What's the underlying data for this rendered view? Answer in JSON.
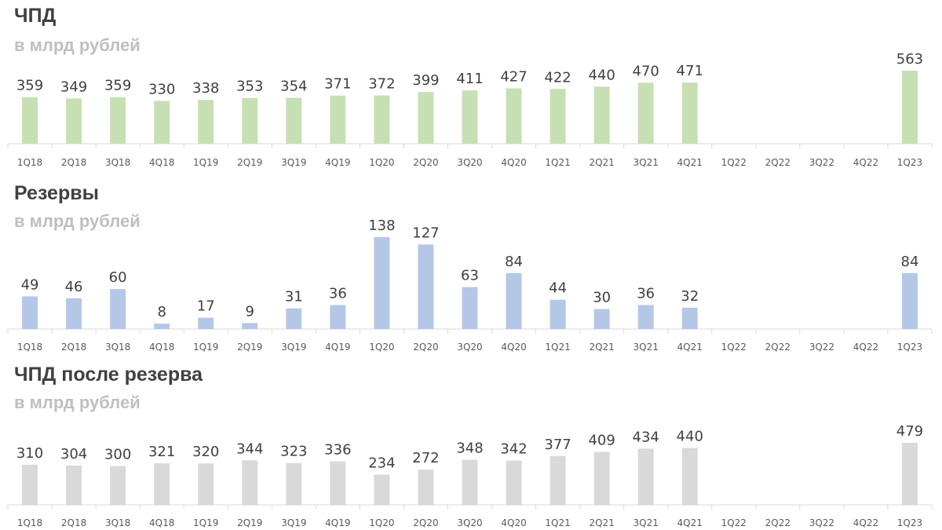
{
  "chart_data": [
    {
      "type": "bar",
      "title": "ЧПД",
      "subtitle": "в млрд рублей",
      "color": "#c6e0b4",
      "categories": [
        "1Q18",
        "2Q18",
        "3Q18",
        "4Q18",
        "1Q19",
        "2Q19",
        "3Q19",
        "4Q19",
        "1Q20",
        "2Q20",
        "3Q20",
        "4Q20",
        "1Q21",
        "2Q21",
        "3Q21",
        "4Q21",
        "1Q22",
        "2Q22",
        "3Q22",
        "4Q22",
        "1Q23"
      ],
      "values": [
        359,
        349,
        359,
        330,
        338,
        353,
        354,
        371,
        372,
        399,
        411,
        427,
        422,
        440,
        470,
        471,
        null,
        null,
        null,
        null,
        563
      ],
      "ylim": [
        0,
        563
      ],
      "grid": false,
      "legend": "none"
    },
    {
      "type": "bar",
      "title": "Резервы",
      "subtitle": "в млрд рублей",
      "color": "#b4c7e7",
      "categories": [
        "1Q18",
        "2Q18",
        "3Q18",
        "4Q18",
        "1Q19",
        "2Q19",
        "3Q19",
        "4Q19",
        "1Q20",
        "2Q20",
        "3Q20",
        "4Q20",
        "1Q21",
        "2Q21",
        "3Q21",
        "4Q21",
        "1Q22",
        "2Q22",
        "3Q22",
        "4Q22",
        "1Q23"
      ],
      "values": [
        49,
        46,
        60,
        8,
        17,
        9,
        31,
        36,
        138,
        127,
        63,
        84,
        44,
        30,
        36,
        32,
        null,
        null,
        null,
        null,
        84
      ],
      "ylim": [
        0,
        138
      ],
      "grid": false,
      "legend": "none"
    },
    {
      "type": "bar",
      "title": "ЧПД после резерва",
      "subtitle": "в млрд рублей",
      "color": "#d9d9d9",
      "categories": [
        "1Q18",
        "2Q18",
        "3Q18",
        "4Q18",
        "1Q19",
        "2Q19",
        "3Q19",
        "4Q19",
        "1Q20",
        "2Q20",
        "3Q20",
        "4Q20",
        "1Q21",
        "2Q21",
        "3Q21",
        "4Q21",
        "1Q22",
        "2Q22",
        "3Q22",
        "4Q22",
        "1Q23"
      ],
      "values": [
        310,
        304,
        300,
        321,
        320,
        344,
        323,
        336,
        234,
        272,
        348,
        342,
        377,
        409,
        434,
        440,
        null,
        null,
        null,
        null,
        479
      ],
      "ylim": [
        0,
        479
      ],
      "grid": false,
      "legend": "none"
    }
  ]
}
